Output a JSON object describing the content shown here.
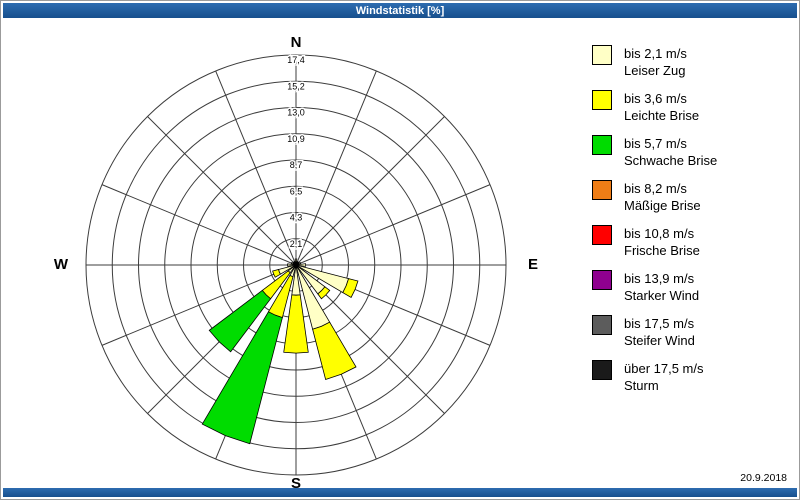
{
  "window": {
    "title": "Windstatistik [%]",
    "date": "20.9.2018",
    "accent_color_top": "#2d6cb0",
    "accent_color_bottom": "#174f8d"
  },
  "compass": {
    "n": "N",
    "e": "E",
    "s": "S",
    "w": "W"
  },
  "chart_data": {
    "type": "windrose",
    "title": "Windstatistik [%]",
    "unit": "%",
    "rings": 8,
    "ring_max": 17.4,
    "ring_labels": [
      "2,1",
      "4,3",
      "6,5",
      "8,7",
      "10,9",
      "13,0",
      "15,2",
      "17,4"
    ],
    "grid": "polar, 16 spokes every 22.5 degrees, 8 concentric circles",
    "legend_position": "right",
    "directions": [
      "N",
      "NNE",
      "NE",
      "ENE",
      "E",
      "ESE",
      "SE",
      "SSE",
      "S",
      "SSW",
      "SW",
      "WSW",
      "W",
      "WNW",
      "NW",
      "NNW"
    ],
    "series": [
      {
        "name": "bis 2,1 m/s",
        "label": "Leiser Zug",
        "color": "#ffffc6",
        "values": [
          0.5,
          0.3,
          0.3,
          0.4,
          0.8,
          4.5,
          3.0,
          5.5,
          2.5,
          1.0,
          0.8,
          1.5,
          0.7,
          0.4,
          0.3,
          0.3
        ]
      },
      {
        "name": "bis 3,6 m/s",
        "label": "Leichte Brise",
        "color": "#ffff00",
        "values": [
          0,
          0,
          0,
          0,
          0,
          0.8,
          0.5,
          4.3,
          4.8,
          3.5,
          2.7,
          0.5,
          0,
          0,
          0,
          0
        ]
      },
      {
        "name": "bis 5,7 m/s",
        "label": "Schwache Brise",
        "color": "#00dc00",
        "values": [
          0,
          0,
          0,
          0,
          0,
          0,
          0,
          0,
          0,
          10.8,
          5.5,
          0,
          0,
          0,
          0,
          0
        ]
      },
      {
        "name": "bis 8,2 m/s",
        "label": "Mäßige Brise",
        "color": "#ee7d16",
        "values": [
          0,
          0,
          0,
          0,
          0,
          0,
          0,
          0,
          0,
          0,
          0,
          0,
          0,
          0,
          0,
          0
        ]
      },
      {
        "name": "bis 10,8 m/s",
        "label": "Frische Brise",
        "color": "#ff0000",
        "values": [
          0,
          0,
          0,
          0,
          0,
          0,
          0,
          0,
          0,
          0,
          0,
          0,
          0,
          0,
          0,
          0
        ]
      },
      {
        "name": "bis 13,9 m/s",
        "label": "Starker Wind",
        "color": "#8f008f",
        "values": [
          0,
          0,
          0,
          0,
          0,
          0,
          0,
          0,
          0,
          0,
          0,
          0,
          0,
          0,
          0,
          0
        ]
      },
      {
        "name": "bis 17,5 m/s",
        "label": "Steifer Wind",
        "color": "#5c5c5c",
        "values": [
          0,
          0,
          0,
          0,
          0,
          0,
          0,
          0,
          0,
          0,
          0,
          0,
          0,
          0,
          0,
          0
        ]
      },
      {
        "name": "über 17,5 m/s",
        "label": "Sturm",
        "color": "#1a1a1a",
        "values": [
          0,
          0,
          0,
          0,
          0,
          0,
          0,
          0,
          0,
          0,
          0,
          0,
          0,
          0,
          0,
          0
        ]
      }
    ]
  }
}
